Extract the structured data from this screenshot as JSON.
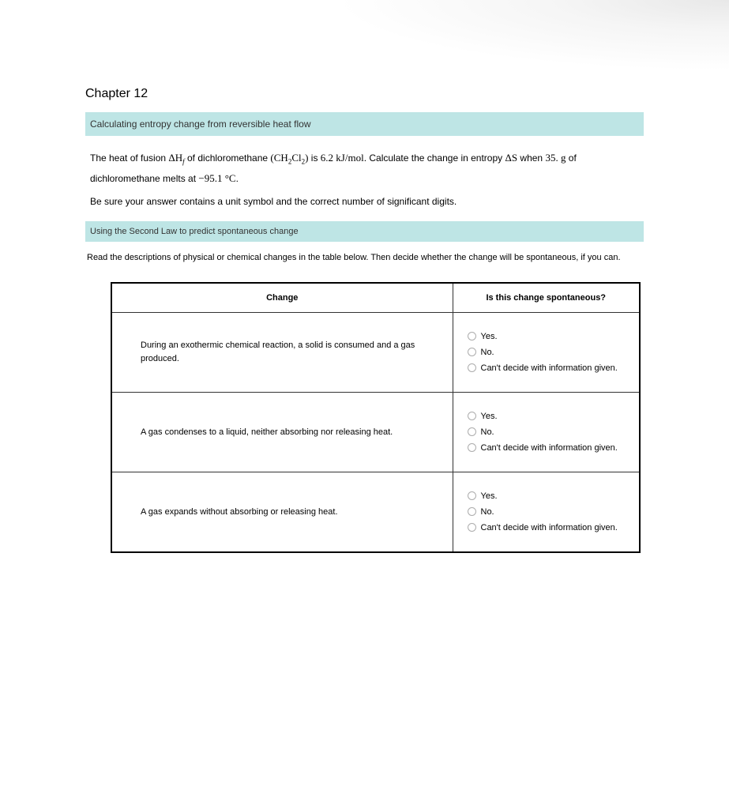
{
  "page": {
    "chapter_title": "Chapter 12",
    "background_color": "#ffffff",
    "section_header_bg": "#bee5e5"
  },
  "section1": {
    "header": "Calculating entropy change from reversible heat flow",
    "problem": {
      "part1": "The heat of fusion ",
      "delta_hf": "ΔH",
      "delta_hf_sub": "f",
      "part2": " of dichloromethane ",
      "formula_open": "(",
      "formula_ch": "CH",
      "formula_sub1": "2",
      "formula_cl": "Cl",
      "formula_sub2": "2",
      "formula_close": ")",
      "part3": " is ",
      "value1": "6.2 kJ/mol",
      "part4": ". Calculate the change in entropy ",
      "delta_s": "ΔS",
      "part5": " when ",
      "mass": "35. g",
      "part6": " of dichloromethane melts at ",
      "temp": "−95.1 °C",
      "part7": "."
    },
    "instruction": "Be sure your answer contains a unit symbol and the correct number of significant digits."
  },
  "section2": {
    "header": "Using the Second Law to predict spontaneous change",
    "intro": "Read the descriptions of physical or chemical changes in the table below. Then decide whether the change will be spontaneous, if you can.",
    "table": {
      "col1_header": "Change",
      "col2_header": "Is this change spontaneous?",
      "border_color": "#000000",
      "rows": [
        {
          "change": "During an exothermic chemical reaction, a solid is consumed and a gas produced.",
          "options": [
            "Yes.",
            "No.",
            "Can't decide with information given."
          ]
        },
        {
          "change": "A gas condenses to a liquid, neither absorbing nor releasing heat.",
          "options": [
            "Yes.",
            "No.",
            "Can't decide with information given."
          ]
        },
        {
          "change": "A gas expands without absorbing or releasing heat.",
          "options": [
            "Yes.",
            "No.",
            "Can't decide with information given."
          ]
        }
      ]
    }
  }
}
